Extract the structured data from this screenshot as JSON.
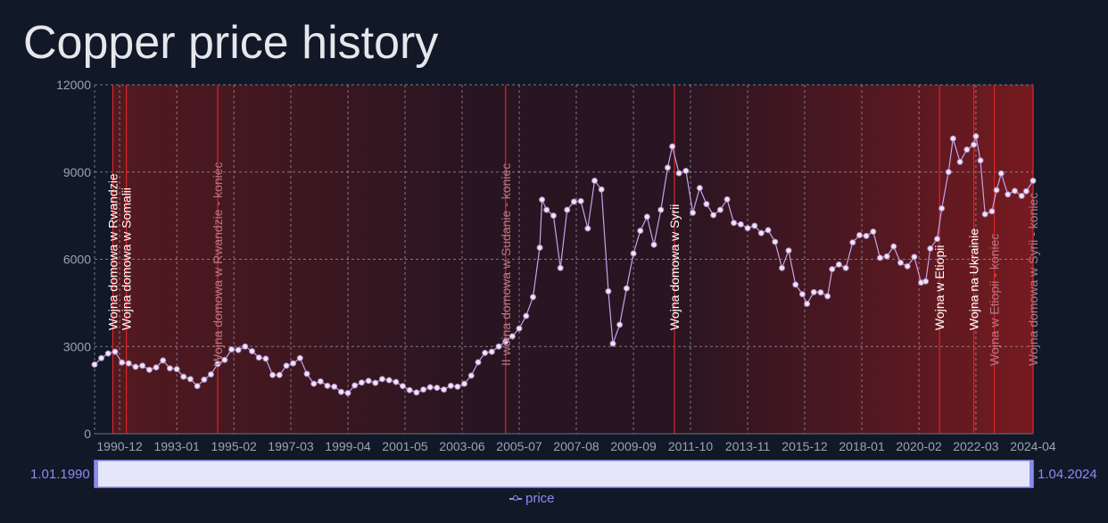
{
  "chart_data": {
    "type": "line",
    "title": "Copper price history",
    "xlabel": "",
    "ylabel": "",
    "ylim": [
      0,
      12000
    ],
    "yticks": [
      0,
      3000,
      6000,
      9000,
      12000
    ],
    "yticklabels": [
      "0",
      "3000",
      "6000",
      "9000",
      "12000"
    ],
    "xlim": [
      "1990-01-01",
      "2024-04-01"
    ],
    "xticklabels": [
      "1990-12",
      "1993-01",
      "1995-02",
      "1997-03",
      "1999-04",
      "2001-05",
      "2003-06",
      "2005-07",
      "2007-08",
      "2009-09",
      "2011-10",
      "2013-11",
      "2015-12",
      "2018-01",
      "2020-02",
      "2022-03",
      "2024-04"
    ],
    "grid": true,
    "series": [
      {
        "name": "price",
        "color": "#c4a5e8",
        "marker": "circle",
        "points": [
          [
            "1990-01",
            2380
          ],
          [
            "1990-04",
            2600
          ],
          [
            "1990-07",
            2760
          ],
          [
            "1990-10",
            2820
          ],
          [
            "1991-01",
            2450
          ],
          [
            "1991-04",
            2420
          ],
          [
            "1991-07",
            2300
          ],
          [
            "1991-10",
            2340
          ],
          [
            "1992-01",
            2200
          ],
          [
            "1992-04",
            2280
          ],
          [
            "1992-07",
            2520
          ],
          [
            "1992-10",
            2250
          ],
          [
            "1993-01",
            2220
          ],
          [
            "1993-04",
            1960
          ],
          [
            "1993-07",
            1880
          ],
          [
            "1993-10",
            1640
          ],
          [
            "1994-01",
            1860
          ],
          [
            "1994-04",
            2040
          ],
          [
            "1994-07",
            2400
          ],
          [
            "1994-10",
            2540
          ],
          [
            "1995-01",
            2900
          ],
          [
            "1995-04",
            2880
          ],
          [
            "1995-07",
            3000
          ],
          [
            "1995-10",
            2840
          ],
          [
            "1996-01",
            2620
          ],
          [
            "1996-04",
            2580
          ],
          [
            "1996-07",
            2020
          ],
          [
            "1996-10",
            2020
          ],
          [
            "1997-01",
            2340
          ],
          [
            "1997-04",
            2420
          ],
          [
            "1997-07",
            2600
          ],
          [
            "1997-10",
            2060
          ],
          [
            "1998-01",
            1720
          ],
          [
            "1998-04",
            1800
          ],
          [
            "1998-07",
            1650
          ],
          [
            "1998-10",
            1620
          ],
          [
            "1999-01",
            1440
          ],
          [
            "1999-04",
            1400
          ],
          [
            "1999-07",
            1660
          ],
          [
            "1999-10",
            1760
          ],
          [
            "2000-01",
            1820
          ],
          [
            "2000-04",
            1750
          ],
          [
            "2000-07",
            1880
          ],
          [
            "2000-10",
            1840
          ],
          [
            "2001-01",
            1780
          ],
          [
            "2001-04",
            1640
          ],
          [
            "2001-07",
            1500
          ],
          [
            "2001-10",
            1420
          ],
          [
            "2002-01",
            1520
          ],
          [
            "2002-04",
            1600
          ],
          [
            "2002-07",
            1580
          ],
          [
            "2002-10",
            1520
          ],
          [
            "2003-01",
            1650
          ],
          [
            "2003-04",
            1620
          ],
          [
            "2003-07",
            1720
          ],
          [
            "2003-10",
            2000
          ],
          [
            "2004-01",
            2460
          ],
          [
            "2004-04",
            2780
          ],
          [
            "2004-07",
            2820
          ],
          [
            "2004-10",
            3000
          ],
          [
            "2005-01",
            3170
          ],
          [
            "2005-04",
            3350
          ],
          [
            "2005-07",
            3620
          ],
          [
            "2005-10",
            4050
          ],
          [
            "2006-01",
            4700
          ],
          [
            "2006-04",
            6400
          ],
          [
            "2006-05",
            8050
          ],
          [
            "2006-07",
            7700
          ],
          [
            "2006-10",
            7500
          ],
          [
            "2007-01",
            5700
          ],
          [
            "2007-04",
            7700
          ],
          [
            "2007-07",
            7980
          ],
          [
            "2007-10",
            8000
          ],
          [
            "2008-01",
            7060
          ],
          [
            "2008-04",
            8700
          ],
          [
            "2008-07",
            8400
          ],
          [
            "2008-10",
            4900
          ],
          [
            "2008-12",
            3100
          ],
          [
            "2009-03",
            3750
          ],
          [
            "2009-06",
            5000
          ],
          [
            "2009-09",
            6200
          ],
          [
            "2009-12",
            6980
          ],
          [
            "2010-03",
            7460
          ],
          [
            "2010-06",
            6500
          ],
          [
            "2010-09",
            7700
          ],
          [
            "2010-12",
            9150
          ],
          [
            "2011-02",
            9880
          ],
          [
            "2011-05",
            8960
          ],
          [
            "2011-08",
            9040
          ],
          [
            "2011-11",
            7600
          ],
          [
            "2012-02",
            8450
          ],
          [
            "2012-05",
            7900
          ],
          [
            "2012-08",
            7520
          ],
          [
            "2012-11",
            7700
          ],
          [
            "2013-02",
            8060
          ],
          [
            "2013-05",
            7250
          ],
          [
            "2013-08",
            7200
          ],
          [
            "2013-11",
            7070
          ],
          [
            "2014-02",
            7150
          ],
          [
            "2014-05",
            6900
          ],
          [
            "2014-08",
            7000
          ],
          [
            "2014-11",
            6600
          ],
          [
            "2015-02",
            5700
          ],
          [
            "2015-05",
            6300
          ],
          [
            "2015-08",
            5130
          ],
          [
            "2015-11",
            4800
          ],
          [
            "2016-01",
            4470
          ],
          [
            "2016-04",
            4870
          ],
          [
            "2016-07",
            4860
          ],
          [
            "2016-10",
            4730
          ],
          [
            "2016-12",
            5660
          ],
          [
            "2017-03",
            5820
          ],
          [
            "2017-06",
            5700
          ],
          [
            "2017-09",
            6580
          ],
          [
            "2017-12",
            6830
          ],
          [
            "2018-03",
            6800
          ],
          [
            "2018-06",
            6950
          ],
          [
            "2018-09",
            6050
          ],
          [
            "2018-12",
            6100
          ],
          [
            "2019-03",
            6440
          ],
          [
            "2019-06",
            5880
          ],
          [
            "2019-09",
            5760
          ],
          [
            "2019-12",
            6080
          ],
          [
            "2020-03",
            5200
          ],
          [
            "2020-05",
            5240
          ],
          [
            "2020-07",
            6370
          ],
          [
            "2020-10",
            6700
          ],
          [
            "2020-12",
            7750
          ],
          [
            "2021-03",
            9000
          ],
          [
            "2021-05",
            10150
          ],
          [
            "2021-08",
            9350
          ],
          [
            "2021-11",
            9770
          ],
          [
            "2022-02",
            9940
          ],
          [
            "2022-03",
            10230
          ],
          [
            "2022-05",
            9400
          ],
          [
            "2022-07",
            7550
          ],
          [
            "2022-10",
            7650
          ],
          [
            "2022-12",
            8380
          ],
          [
            "2023-02",
            8950
          ],
          [
            "2023-05",
            8230
          ],
          [
            "2023-08",
            8350
          ],
          [
            "2023-11",
            8180
          ],
          [
            "2024-01",
            8340
          ],
          [
            "2024-04",
            8700
          ]
        ]
      }
    ],
    "events": [
      {
        "date": "1990-09-01",
        "label": "Wojna domowa w Rwandzie",
        "lit": true
      },
      {
        "date": "1991-03-01",
        "label": "Wojna domowa w Somalii",
        "lit": true
      },
      {
        "date": "1994-07-01",
        "label": "Wojna domowa w Rwandzie - koniec",
        "lit": false
      },
      {
        "date": "2005-01-01",
        "label": "II wojna domowa w Sudanie - koniec",
        "lit": false
      },
      {
        "date": "2011-03-01",
        "label": "Wojna domowa w Syrii",
        "lit": true
      },
      {
        "date": "2020-11-01",
        "label": "Wojna w Etiopii",
        "lit": true
      },
      {
        "date": "2022-02-01",
        "label": "Wojna na Ukrainie",
        "lit": true
      },
      {
        "date": "2022-11-01",
        "label": "Wojna w Etiopii - koniec",
        "lit": false
      },
      {
        "date": "2024-04-01",
        "label": "Wojna domowa w Syrii - koniec",
        "lit": false
      }
    ]
  },
  "rangeslider": {
    "start_label": "1.01.1990",
    "end_label": "1.04.2024"
  },
  "legend": {
    "label": "price"
  },
  "colors": {
    "background": "#111827",
    "event_line": "#dc2626",
    "event_shade": "#7f1d1d",
    "series": "#c4a5e8",
    "marker_fill": "#f5e4f0"
  }
}
